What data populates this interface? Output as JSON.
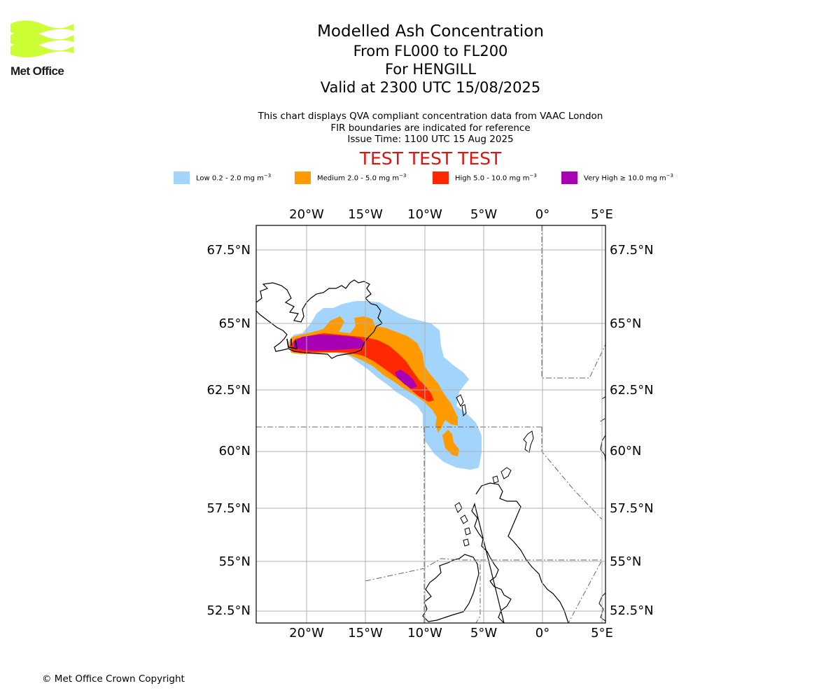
{
  "logo": {
    "text": "Met Office",
    "color": "#ccff33"
  },
  "title": {
    "line1": "Modelled Ash Concentration",
    "line2": "From FL000 to FL200",
    "line3": "For HENGILL",
    "line4": "Valid at 2300 UTC 15/08/2025"
  },
  "subtitle": {
    "line1": "This chart displays QVA compliant concentration data from VAAC London",
    "line2": "FIR boundaries are indicated for reference",
    "line3": "Issue Time: 1100 UTC 15 Aug 2025"
  },
  "test_banner": "TEST TEST TEST",
  "legend": [
    {
      "prefix": "Low 0.2 - 2.0 mg m",
      "exp": "−3",
      "color": "#a3d4fb"
    },
    {
      "prefix": "Medium 2.0 - 5.0 mg m",
      "exp": "−3",
      "color": "#ff9a00"
    },
    {
      "prefix": "High 5.0 - 10.0 mg m",
      "exp": "−3",
      "color": "#ff2800"
    },
    {
      "prefix": "Very High ≥ 10.0 mg m",
      "exp": "−3",
      "color": "#a800b4"
    }
  ],
  "map": {
    "lon_ticks": [
      "20°W",
      "15°W",
      "10°W",
      "5°W",
      "0°",
      "5°E"
    ],
    "lat_ticks": [
      "67.5°N",
      "65°N",
      "62.5°N",
      "60°N",
      "57.5°N",
      "55°N",
      "52.5°N"
    ]
  },
  "copyright": "© Met Office Crown Copyright"
}
